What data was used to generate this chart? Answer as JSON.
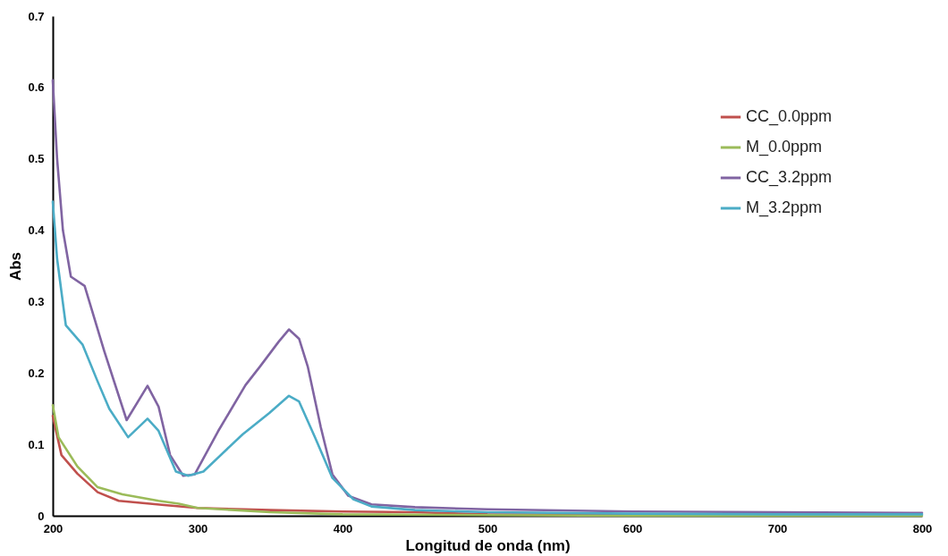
{
  "chart_data": {
    "type": "line",
    "xlabel": "Longitud de onda (nm)",
    "ylabel": "Abs",
    "xlim": [
      200,
      800
    ],
    "ylim": [
      0,
      0.7
    ],
    "xticks": [
      200,
      300,
      400,
      500,
      600,
      700,
      800
    ],
    "yticks": [
      0,
      0.1,
      0.2,
      0.3,
      0.4,
      0.5,
      0.6,
      0.7
    ],
    "grid": false,
    "legend": "top right",
    "series": [
      {
        "name": "CC_0.0ppm",
        "color": "#c0504d",
        "x": [
          200,
          206,
          217,
          231,
          245.5,
          277,
          300,
          350,
          400,
          450,
          500,
          600
        ],
        "values": [
          0.14,
          0.085,
          0.059,
          0.033,
          0.021,
          0.015,
          0.011,
          0.008,
          0.006,
          0.005,
          0.002,
          0.001
        ]
      },
      {
        "name": "M_0.0ppm",
        "color": "#9bbb59",
        "x": [
          200,
          204,
          217,
          231,
          248,
          273,
          287,
          300,
          350,
          400,
          500,
          600,
          700,
          800
        ],
        "values": [
          0.155,
          0.11,
          0.069,
          0.04,
          0.03,
          0.021,
          0.017,
          0.011,
          0.005,
          0.002,
          0.001,
          0,
          0,
          0
        ]
      },
      {
        "name": "CC_3.2ppm",
        "color": "#8064a2",
        "x": [
          200,
          203,
          207,
          212.5,
          222,
          235.5,
          251,
          265.4,
          273,
          281,
          290,
          298,
          314,
          333,
          343,
          356,
          363,
          370,
          376,
          385,
          393,
          404,
          420,
          450,
          500,
          600,
          700,
          800
        ],
        "values": [
          0.61,
          0.5,
          0.4,
          0.335,
          0.322,
          0.231,
          0.134,
          0.182,
          0.153,
          0.085,
          0.056,
          0.058,
          0.118,
          0.183,
          0.209,
          0.244,
          0.261,
          0.248,
          0.209,
          0.124,
          0.058,
          0.028,
          0.016,
          0.012,
          0.009,
          0.006,
          0.005,
          0.004
        ]
      },
      {
        "name": "M_3.2ppm",
        "color": "#4bacc6",
        "x": [
          200,
          203,
          209,
          220.5,
          231,
          239,
          252,
          265.4,
          273,
          285,
          293.5,
          304,
          331,
          349.5,
          363,
          370,
          381,
          393,
          407.5,
          420,
          450,
          500,
          600,
          700,
          800
        ],
        "values": [
          0.44,
          0.36,
          0.267,
          0.24,
          0.188,
          0.15,
          0.11,
          0.136,
          0.119,
          0.062,
          0.056,
          0.062,
          0.114,
          0.144,
          0.168,
          0.16,
          0.11,
          0.053,
          0.023,
          0.013,
          0.008,
          0.005,
          0.003,
          0.002,
          0.002
        ]
      }
    ]
  }
}
